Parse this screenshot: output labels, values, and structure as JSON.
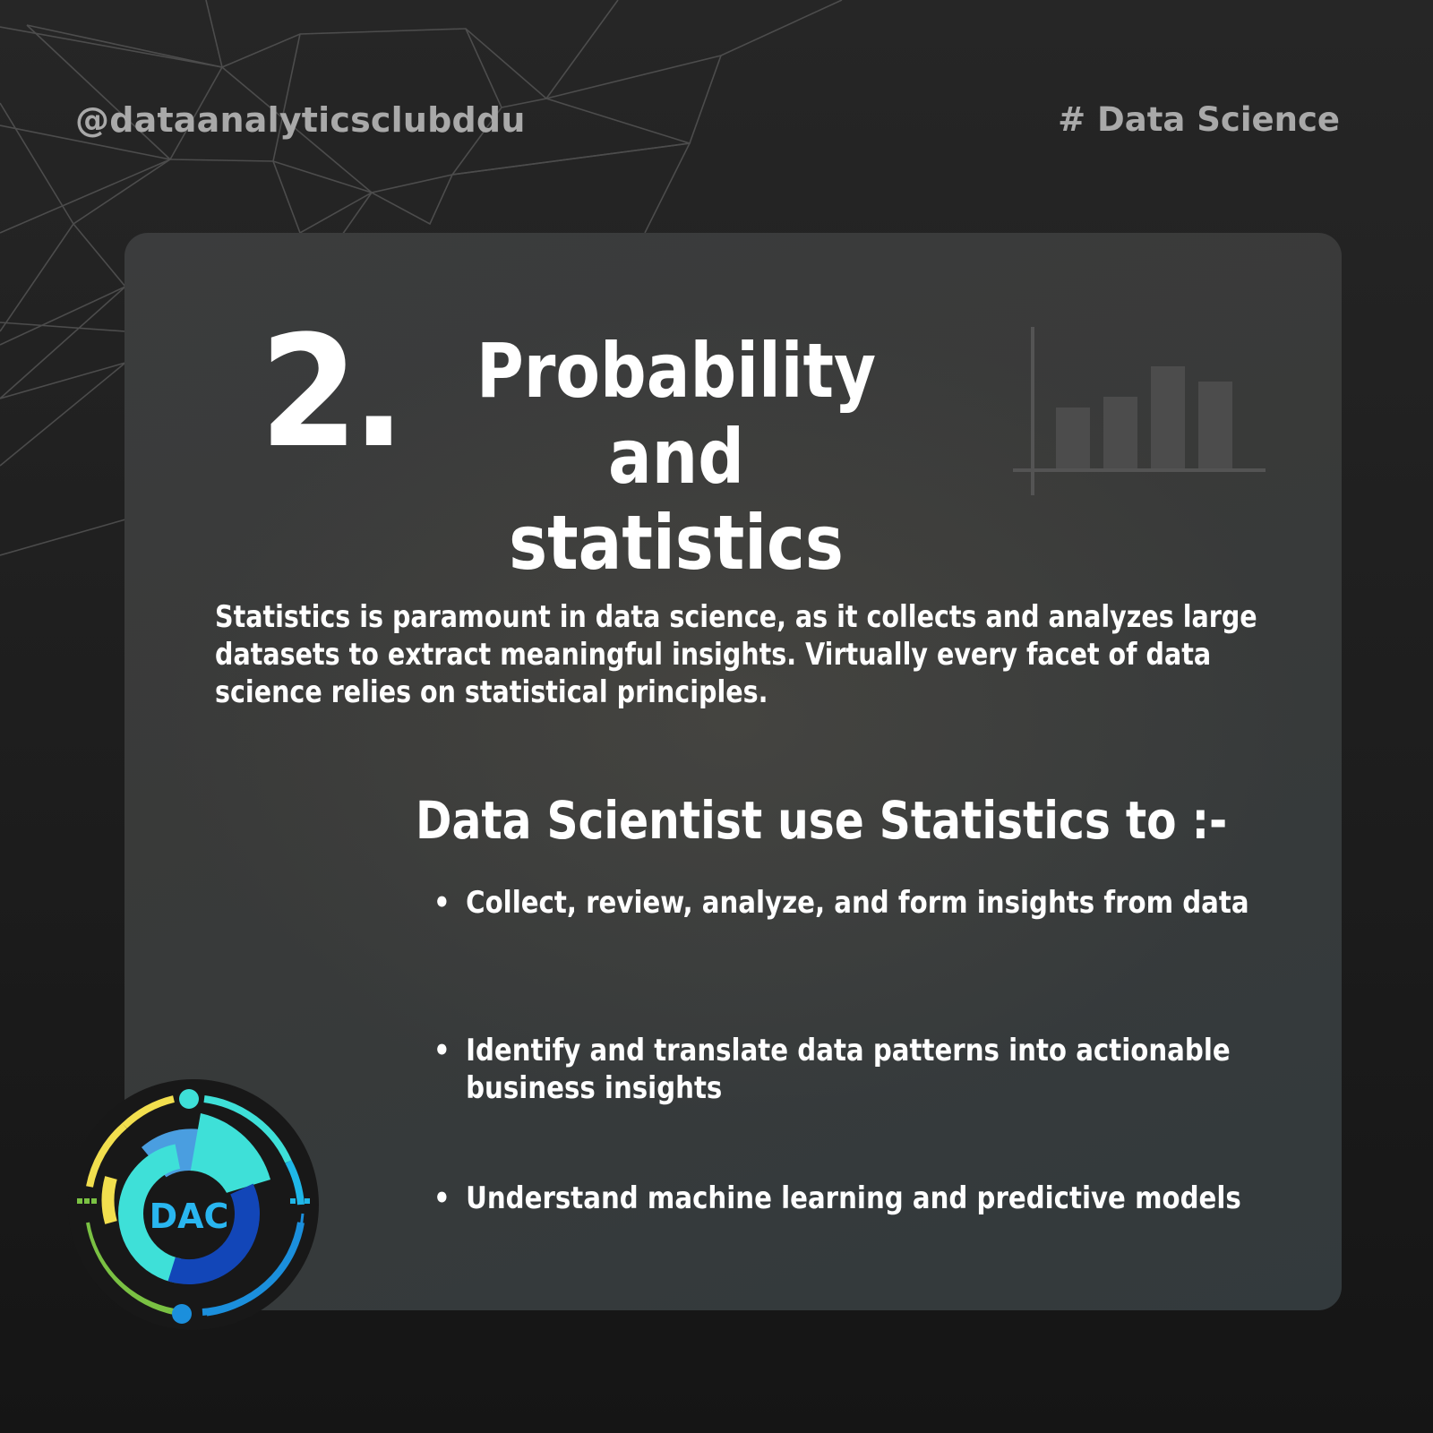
{
  "header": {
    "handle": "@dataanalyticsclubddu",
    "hashtag": "# Data Science"
  },
  "section": {
    "number": "2.",
    "title_line1": "Probability and",
    "title_line2": "statistics"
  },
  "intro": "Statistics is paramount in data science, as it collects and analyzes large datasets to extract meaningful insights. Virtually every facet of data science relies on statistical principles.",
  "subheading": "Data Scientist use Statistics to :-",
  "bullets": [
    "Collect, review, analyze, and form insights from data",
    "Identify and translate data patterns into actionable business insights",
    "Understand machine learning and predictive models"
  ],
  "logo": {
    "text": "DAC"
  },
  "icons": [
    "bar-chart-icon",
    "dac-logo"
  ],
  "colors": {
    "background": "#1e1e1e",
    "card": "#393a3b",
    "text": "#ffffff",
    "muted": "#a9a9a9",
    "logo_cyan": "#3ee0d8",
    "logo_blue": "#1b8fdc",
    "logo_yellow": "#f2df4e",
    "logo_green": "#7ac143"
  }
}
